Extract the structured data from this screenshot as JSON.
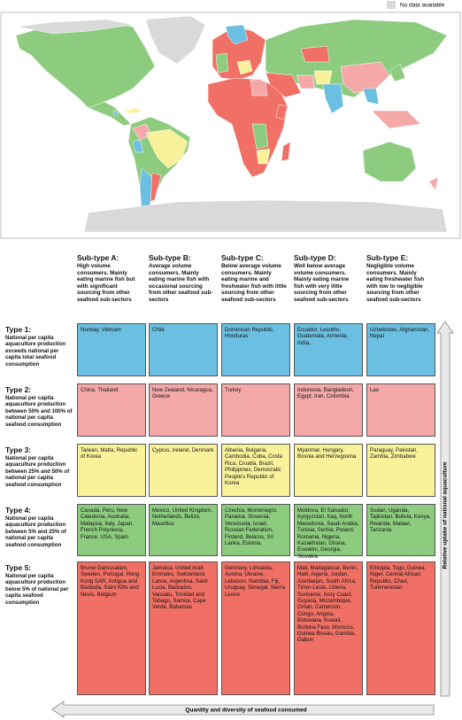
{
  "legend": {
    "no_data": "No data available"
  },
  "columns": [
    {
      "title": "Sub-type A:",
      "description": "High volume consumers. Mainly eating marine fish but with significant sourcing from other seafood sub-sectors"
    },
    {
      "title": "Sub-type B:",
      "description": "Average volume consumers. Mainly eating marine fish with occasional sourcing from other seafood sub-sectors"
    },
    {
      "title": "Sub-type C:",
      "description": "Below average volume consumers. Mainly eating marine and freshwater fish with little sourcing from other seafood sub-sectors"
    },
    {
      "title": "Sub-type D:",
      "description": "Well below average volume consumers. Mainly eating marine fish with very little sourcing from other seafood sub-sectors"
    },
    {
      "title": "Sub-type E:",
      "description": "Negligible volume consumers. Mainly eating freshwater fish with low to negligible sourcing from other seafood sub-sectors"
    }
  ],
  "rows": [
    {
      "title": "Type 1:",
      "description": "National per capita aquaculture production exceeds national per capita total seafood consumption",
      "cells": [
        "Norway, Vietnam",
        "Chile",
        "Dominican Republic, Honduras",
        "Ecuador, Lesotho, Guatemala, Armenia, India,",
        "Uzbekistan, Afghanistan, Nepal"
      ]
    },
    {
      "title": "Type 2:",
      "description": "National per capita aquaculture production between 50% and 100% of national per capita seafood consumption",
      "cells": [
        "China, Thailand",
        "New Zealand, Nicaragua, Greece",
        "Turkey",
        "Indonesia, Bangladesh, Egypt, Iran, Colombia",
        "Lao"
      ]
    },
    {
      "title": "Type 3:",
      "description": "National per capita aquaculture production between 25% and 50% of national per capita seafood consumption",
      "cells": [
        "Taiwan, Malta, Republic of Korea",
        "Cyprus, Ireland, Denmark",
        "Albania, Bulgaria, Cambodia, Cuba, Costa Rica, Croatia, Brazil, Philippines, Democratic People's Republic of Korea",
        "Myanmar, Hungary, Bosnia and Herzegovina",
        "Paraguay, Pakistan, Zambia, Zimbabwe"
      ]
    },
    {
      "title": "Type 4:",
      "description": "National per capita aquaculture production between 5% and 25% of national per capita seafood consumption",
      "cells": [
        "Canada, Peru, New Caledonia, Australia, Malaysia, Italy, Japan, French Polynesia, France, USA, Spain",
        "Mexico, United Kingdom, Netherlands, Belize, Mauritius",
        "Czechia, Montenegro, Panama, Slovenia, Venezuela, Israel, Russian Federation, Finland, Belarus, Sri Lanka, Estonia,",
        "Moldova, El Salvador, Kyrgyzstan, Iraq, North Macedonia, Saudi Arabia, Tunisia, Serbia, Poland, Romania, Nigeria, Kazakhstan, Ghana, Eswatini, Georgia, Slovakia",
        "Sudan, Uganda, Tajikistan, Bolivia, Kenya, Rwanda, Malawi, Tanzania"
      ]
    },
    {
      "title": "Type 5:",
      "description": "National per capita aquaculture production below 5% of national per capita seafood consumption",
      "cells": [
        "Brunei Darussalam, Sweden, Portugal, Hong Kong SAR, Antigua and Barbuda, Saint Kitts and Nevis, Belgium",
        "Jamaica, United Arab Emirates, Switzerland, Latvia, Argentina, Saint Lucia, Barbados, Vanuatu, Trinidad and Tobago, Samoa, Cape Verde, Bahamas",
        "Germany, Lithuania, Austria, Ukraine, Lebanon, Namibia, Fiji, Uruguay, Senegal, Sierra Leone",
        "Mali, Madagascar, Benin, Haiti, Algeria, Jordan, Azerbaijan, South Africa, Timor-Leste, Liberia, Suriname, Ivory Coast, Guyana, Mozambique, Oman, Cameroon, Congo, Angola, Botswana, Kuwait, Burkina Faso, Morocco, Guinea Bissau, Gambia, Gabon",
        "Ethiopia, Togo, Guinea, Niger, Central African Republic, Chad, Turkmenistan"
      ]
    }
  ],
  "vertical_axis": "Relative uptake of national aquaculture",
  "horizontal_axis": "Quantity and diversity of seafood consumed"
}
